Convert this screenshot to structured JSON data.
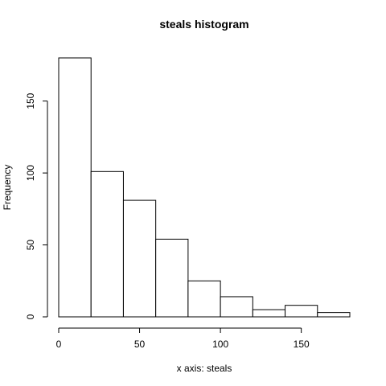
{
  "chart_data": {
    "type": "bar",
    "title": "steals histogram",
    "xlabel": "x axis: steals",
    "ylabel": "Frequency",
    "bin_edges": [
      0,
      20,
      40,
      60,
      80,
      100,
      120,
      140,
      160,
      180
    ],
    "values": [
      180,
      101,
      81,
      54,
      25,
      14,
      5,
      8,
      3
    ],
    "xlim": [
      0,
      180
    ],
    "ylim": [
      0,
      180
    ],
    "x_ticks": [
      0,
      50,
      100,
      150
    ],
    "y_ticks": [
      0,
      50,
      100,
      150
    ],
    "grid": false,
    "bar_fill": "#ffffff",
    "bar_stroke": "#000000"
  }
}
